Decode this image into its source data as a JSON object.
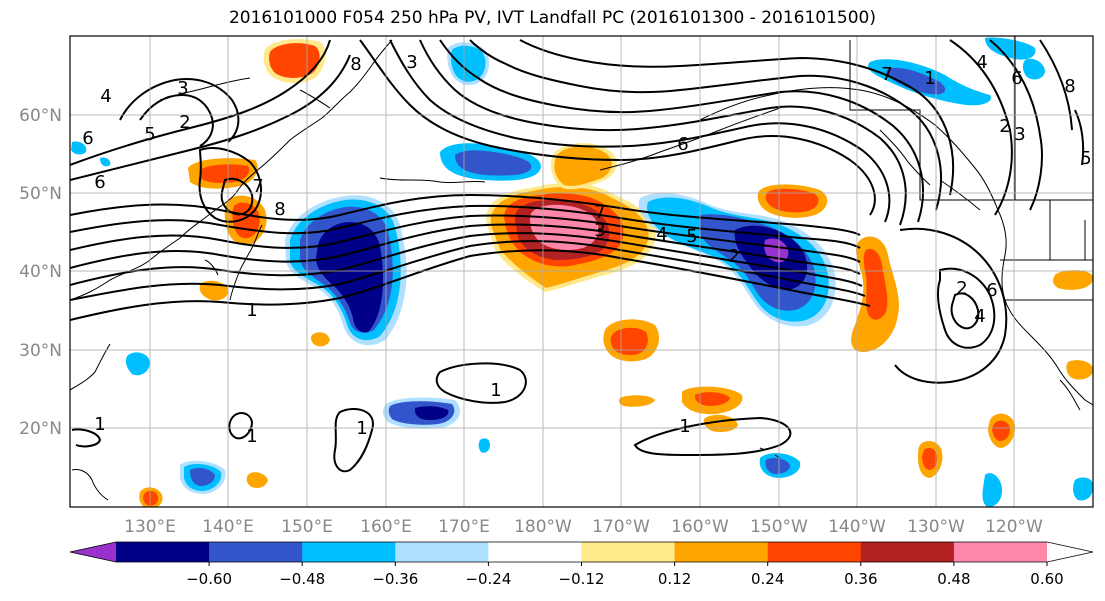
{
  "title": "2016101000 F054 250 hPa PV, IVT Landfall PC (2016101300 - 2016101500)",
  "map": {
    "lat_labels": [
      "60°N",
      "50°N",
      "40°N",
      "30°N",
      "20°N"
    ],
    "lon_labels": [
      "130°E",
      "140°E",
      "150°E",
      "160°E",
      "170°E",
      "180°W",
      "170°W",
      "160°W",
      "150°W",
      "140°W",
      "130°W",
      "120°W"
    ],
    "contour_labels": [
      {
        "name": "contour-label-8-top",
        "text": "8"
      },
      {
        "name": "contour-label-3-top",
        "text": "3"
      },
      {
        "name": "contour-label-4-nw",
        "text": "4"
      },
      {
        "name": "contour-label-3-nw",
        "text": "3"
      },
      {
        "name": "contour-label-2-nw",
        "text": "2"
      },
      {
        "name": "contour-label-5-nw",
        "text": "5"
      },
      {
        "name": "contour-label-6-w",
        "text": "6"
      },
      {
        "name": "contour-label-6-w2",
        "text": "6"
      },
      {
        "name": "contour-label-7-w",
        "text": "7"
      },
      {
        "name": "contour-label-8-w",
        "text": "8"
      },
      {
        "name": "contour-label-7-center",
        "text": "7"
      },
      {
        "name": "contour-label-3-center",
        "text": "3"
      },
      {
        "name": "contour-label-4-center",
        "text": "4"
      },
      {
        "name": "contour-label-5-center",
        "text": "5"
      },
      {
        "name": "contour-label-6-ne",
        "text": "6"
      },
      {
        "name": "contour-label-2-center",
        "text": "2"
      },
      {
        "name": "contour-label-1-sw",
        "text": "1"
      },
      {
        "name": "contour-label-1-mid",
        "text": "1"
      },
      {
        "name": "contour-label-1-south",
        "text": "1"
      },
      {
        "name": "contour-label-1-left",
        "text": "1"
      },
      {
        "name": "contour-label-1-bl",
        "text": "1"
      },
      {
        "name": "contour-label-1-tip",
        "text": "1"
      },
      {
        "name": "contour-label-2-east",
        "text": "2"
      },
      {
        "name": "contour-label-6-east",
        "text": "6"
      },
      {
        "name": "contour-label-4-east",
        "text": "4"
      },
      {
        "name": "contour-label-7-ne",
        "text": "7"
      },
      {
        "name": "contour-label-6-ne2",
        "text": "6"
      },
      {
        "name": "contour-label-4-ne",
        "text": "4"
      },
      {
        "name": "contour-label-8-ne",
        "text": "8"
      },
      {
        "name": "contour-label-5-e",
        "text": "5"
      },
      {
        "name": "contour-label-3-e",
        "text": "3"
      },
      {
        "name": "contour-label-2-e",
        "text": "2"
      },
      {
        "name": "contour-label-1-e",
        "text": "1"
      }
    ]
  },
  "colorbar": {
    "tick_labels": [
      "−0.60",
      "−0.48",
      "−0.36",
      "−0.24",
      "−0.12",
      "0.12",
      "0.24",
      "0.36",
      "0.48",
      "0.60"
    ],
    "colors": [
      "#9932cc",
      "#000088",
      "#3355cc",
      "#00bfff",
      "#b0e0ff",
      "#ffffff",
      "#ffe98a",
      "#ffa500",
      "#ff4500",
      "#b22222",
      "#ff88aa",
      "#ffffff"
    ]
  },
  "colors": {
    "purple": "#9932cc",
    "navy": "#000088",
    "royal_blue": "#3355cc",
    "deep_sky": "#00bfff",
    "light_blue": "#b0e0ff",
    "light_yellow": "#ffe98a",
    "orange": "#ffa500",
    "orange_red": "#ff4500",
    "firebrick": "#b22222",
    "pink": "#ff88aa"
  }
}
